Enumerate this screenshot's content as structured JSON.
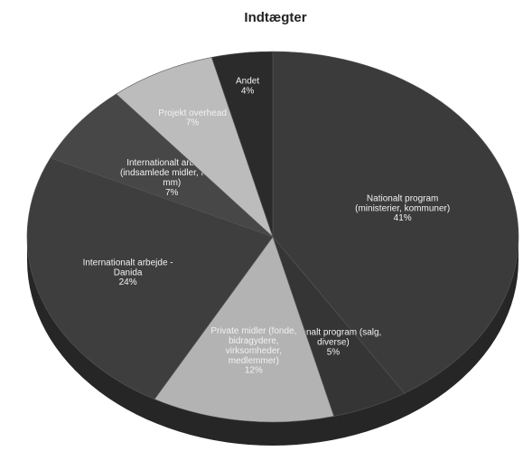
{
  "chart_data": {
    "type": "pie",
    "title": "Indtægter",
    "categories": [
      "Nationalt program\n(ministerier, kommuner)",
      "Nationalt program (salg,\ndiverse)",
      "Private midler (fonde,\nbidragydere,\nvirksomheder,\nmedlemmer)",
      "Internationalt arbejde -\nDanida",
      "Internationalt arbejde -\n(indsamlede midler, fonde\nmm)",
      "Projekt overhead",
      "Andet"
    ],
    "values": [
      41,
      5,
      12,
      24,
      7,
      7,
      4
    ],
    "value_labels": [
      "41%",
      "5%",
      "12%",
      "24%",
      "7%",
      "7%",
      "4%"
    ],
    "colors": [
      "#3b3b3b",
      "#353535",
      "#b3b3b3",
      "#3e3e3e",
      "#474747",
      "#bcbcbc",
      "#2b2b2b"
    ]
  }
}
